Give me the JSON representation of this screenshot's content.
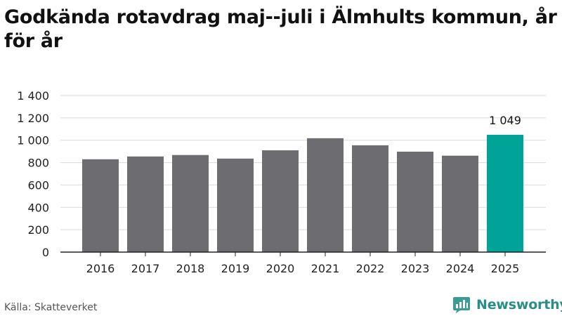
{
  "title": "Godkända rotavdrag maj--juli i Älmhults kommun, år för år",
  "source": "Källa: Skatteverket",
  "brand": "Newsworthy",
  "colors": {
    "bar": "#6d6c71",
    "highlight": "#00a398",
    "grid": "#d9d9d9",
    "axis": "#222222",
    "brand": "#2b8e86"
  },
  "chart_data": {
    "type": "bar",
    "categories": [
      "2016",
      "2017",
      "2018",
      "2019",
      "2020",
      "2021",
      "2022",
      "2023",
      "2024",
      "2025"
    ],
    "values": [
      830,
      855,
      868,
      836,
      910,
      1018,
      955,
      898,
      862,
      1049
    ],
    "highlight_index": 9,
    "data_labels": [
      {
        "index": 9,
        "text": "1 049"
      }
    ],
    "ylim": [
      0,
      1400
    ],
    "yticks": [
      0,
      200,
      400,
      600,
      800,
      1000,
      1200,
      1400
    ],
    "ytick_labels": [
      "0",
      "200",
      "400",
      "600",
      "800",
      "1 000",
      "1 200",
      "1 400"
    ],
    "xlabel": "",
    "ylabel": "",
    "grid": true
  }
}
